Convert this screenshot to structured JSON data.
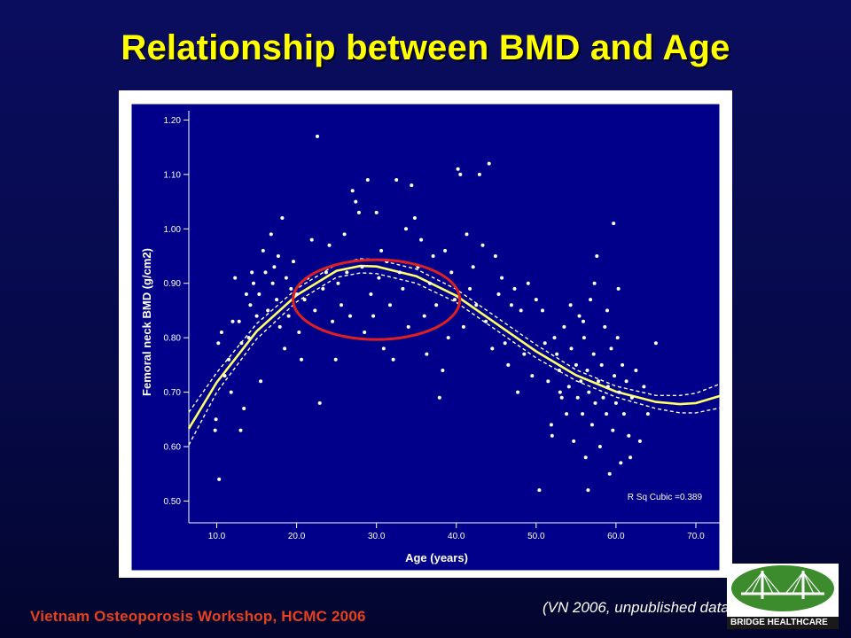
{
  "slide": {
    "title": "Relationship between BMD and Age",
    "footer": "Vietnam Osteoporosis Workshop, HCMC 2006",
    "source_note": "(VN 2006, unpublished data)",
    "logo_text": "BRIDGE HEALTHCARE",
    "colors": {
      "background": "#0a0d5e",
      "title": "#ffff00",
      "footer": "#e8401e",
      "plot_bg": "#00008b",
      "fit_line": "#ffff66",
      "highlight_ellipse": "#e02020"
    }
  },
  "chart_data": {
    "type": "scatter",
    "title": "",
    "xlabel": "Age (years)",
    "ylabel": "Femoral neck BMD (g/cm2)",
    "xlim": [
      6.5,
      73
    ],
    "ylim": [
      0.46,
      1.23
    ],
    "x_ticks": [
      "10.0",
      "20.0",
      "30.0",
      "40.0",
      "50.0",
      "60.0",
      "70.0"
    ],
    "y_ticks": [
      "0.50",
      "0.60",
      "0.70",
      "0.80",
      "0.90",
      "1.00",
      "1.10",
      "1.20"
    ],
    "annotation": "R Sq Cubic =0.389",
    "grid": false,
    "fit": {
      "type": "cubic",
      "points": [
        [
          6.5,
          0.633
        ],
        [
          10,
          0.718
        ],
        [
          15,
          0.812
        ],
        [
          20,
          0.878
        ],
        [
          25,
          0.923
        ],
        [
          28,
          0.932
        ],
        [
          30,
          0.931
        ],
        [
          35,
          0.913
        ],
        [
          40,
          0.877
        ],
        [
          45,
          0.826
        ],
        [
          50,
          0.775
        ],
        [
          55,
          0.731
        ],
        [
          60,
          0.701
        ],
        [
          65,
          0.682
        ],
        [
          68,
          0.678
        ],
        [
          70,
          0.68
        ],
        [
          73,
          0.693
        ]
      ],
      "ci_halfwidth": [
        0.03,
        0.018,
        0.014,
        0.012,
        0.012,
        0.013,
        0.013,
        0.013,
        0.012,
        0.012,
        0.012,
        0.01,
        0.01,
        0.012,
        0.016,
        0.018,
        0.022
      ]
    },
    "highlight_region": {
      "x": [
        20,
        40
      ],
      "y": [
        0.8,
        0.94
      ]
    },
    "points": [
      [
        9.8,
        0.63
      ],
      [
        9.9,
        0.65
      ],
      [
        10.3,
        0.54
      ],
      [
        10.6,
        0.81
      ],
      [
        10.2,
        0.79
      ],
      [
        11.0,
        0.73
      ],
      [
        11.5,
        0.76
      ],
      [
        12.0,
        0.83
      ],
      [
        11.8,
        0.7
      ],
      [
        12.3,
        0.91
      ],
      [
        12.8,
        0.83
      ],
      [
        13.1,
        0.79
      ],
      [
        13.4,
        0.67
      ],
      [
        13.0,
        0.63
      ],
      [
        13.7,
        0.88
      ],
      [
        14.0,
        0.8
      ],
      [
        14.4,
        0.92
      ],
      [
        14.2,
        0.86
      ],
      [
        14.6,
        0.9
      ],
      [
        15.0,
        0.84
      ],
      [
        15.3,
        0.88
      ],
      [
        15.5,
        0.72
      ],
      [
        15.8,
        0.96
      ],
      [
        16.1,
        0.92
      ],
      [
        16.4,
        0.85
      ],
      [
        16.8,
        0.99
      ],
      [
        17.0,
        0.9
      ],
      [
        17.2,
        0.93
      ],
      [
        17.5,
        0.87
      ],
      [
        17.7,
        0.95
      ],
      [
        17.9,
        0.82
      ],
      [
        18.2,
        1.02
      ],
      [
        18.5,
        0.78
      ],
      [
        18.7,
        0.91
      ],
      [
        19.0,
        0.84
      ],
      [
        19.3,
        0.89
      ],
      [
        19.6,
        0.94
      ],
      [
        20.0,
        0.88
      ],
      [
        20.3,
        0.81
      ],
      [
        20.6,
        0.76
      ],
      [
        21.0,
        0.87
      ],
      [
        21.4,
        0.91
      ],
      [
        21.9,
        0.98
      ],
      [
        22.3,
        0.85
      ],
      [
        22.6,
        1.17
      ],
      [
        22.9,
        0.68
      ],
      [
        23.3,
        0.89
      ],
      [
        23.7,
        0.92
      ],
      [
        24.1,
        0.97
      ],
      [
        24.5,
        0.83
      ],
      [
        24.9,
        0.76
      ],
      [
        25.2,
        0.9
      ],
      [
        25.6,
        0.86
      ],
      [
        26.0,
        0.99
      ],
      [
        26.3,
        0.92
      ],
      [
        26.7,
        0.84
      ],
      [
        27.0,
        1.07
      ],
      [
        27.4,
        1.05
      ],
      [
        27.8,
        1.03
      ],
      [
        28.2,
        0.93
      ],
      [
        28.5,
        0.81
      ],
      [
        28.9,
        1.09
      ],
      [
        29.3,
        0.88
      ],
      [
        29.6,
        0.84
      ],
      [
        30.0,
        1.03
      ],
      [
        30.3,
        0.91
      ],
      [
        30.6,
        0.96
      ],
      [
        30.9,
        0.78
      ],
      [
        31.3,
        0.94
      ],
      [
        31.7,
        0.86
      ],
      [
        32.1,
        0.76
      ],
      [
        32.5,
        1.09
      ],
      [
        32.9,
        0.92
      ],
      [
        33.3,
        0.89
      ],
      [
        33.7,
        1.0
      ],
      [
        34.0,
        0.82
      ],
      [
        34.4,
        1.08
      ],
      [
        34.8,
        1.02
      ],
      [
        35.2,
        0.93
      ],
      [
        35.6,
        0.98
      ],
      [
        36.0,
        0.84
      ],
      [
        36.3,
        0.77
      ],
      [
        36.7,
        0.9
      ],
      [
        37.1,
        0.95
      ],
      [
        37.5,
        0.86
      ],
      [
        37.9,
        0.69
      ],
      [
        38.3,
        0.74
      ],
      [
        38.6,
        0.96
      ],
      [
        39.0,
        0.8
      ],
      [
        39.4,
        0.92
      ],
      [
        39.8,
        0.87
      ],
      [
        40.2,
        1.11
      ],
      [
        40.5,
        1.1
      ],
      [
        40.9,
        0.82
      ],
      [
        41.3,
        0.99
      ],
      [
        41.7,
        0.89
      ],
      [
        42.1,
        0.93
      ],
      [
        42.5,
        0.86
      ],
      [
        42.9,
        1.1
      ],
      [
        43.3,
        0.97
      ],
      [
        43.7,
        0.83
      ],
      [
        44.1,
        1.12
      ],
      [
        44.5,
        0.78
      ],
      [
        44.9,
        0.95
      ],
      [
        45.3,
        0.88
      ],
      [
        45.7,
        0.91
      ],
      [
        46.1,
        0.79
      ],
      [
        46.5,
        0.75
      ],
      [
        46.9,
        0.86
      ],
      [
        47.3,
        0.89
      ],
      [
        47.7,
        0.7
      ],
      [
        48.1,
        0.85
      ],
      [
        48.5,
        0.77
      ],
      [
        49.0,
        0.9
      ],
      [
        49.5,
        0.73
      ],
      [
        50.0,
        0.87
      ],
      [
        50.4,
        0.52
      ],
      [
        50.8,
        0.85
      ],
      [
        51.1,
        0.79
      ],
      [
        51.5,
        0.72
      ],
      [
        51.9,
        0.64
      ],
      [
        52.3,
        0.8
      ],
      [
        52.6,
        0.77
      ],
      [
        52.9,
        0.74
      ],
      [
        53.2,
        0.69
      ],
      [
        53.5,
        0.82
      ],
      [
        53.8,
        0.66
      ],
      [
        54.1,
        0.71
      ],
      [
        54.4,
        0.78
      ],
      [
        54.7,
        0.61
      ],
      [
        55.0,
        0.75
      ],
      [
        55.2,
        0.69
      ],
      [
        55.4,
        0.84
      ],
      [
        55.6,
        0.72
      ],
      [
        55.8,
        0.66
      ],
      [
        56.0,
        0.8
      ],
      [
        56.2,
        0.58
      ],
      [
        56.4,
        0.74
      ],
      [
        56.6,
        0.7
      ],
      [
        56.8,
        0.87
      ],
      [
        57.0,
        0.64
      ],
      [
        57.2,
        0.77
      ],
      [
        57.4,
        0.68
      ],
      [
        57.6,
        0.95
      ],
      [
        57.8,
        0.72
      ],
      [
        58.0,
        0.6
      ],
      [
        58.2,
        0.75
      ],
      [
        58.4,
        0.69
      ],
      [
        58.6,
        0.82
      ],
      [
        58.8,
        0.66
      ],
      [
        59.0,
        0.71
      ],
      [
        59.2,
        0.55
      ],
      [
        59.4,
        0.78
      ],
      [
        59.6,
        0.63
      ],
      [
        59.8,
        0.73
      ],
      [
        60.0,
        0.68
      ],
      [
        60.2,
        0.8
      ],
      [
        60.4,
        0.7
      ],
      [
        60.6,
        0.57
      ],
      [
        60.8,
        0.75
      ],
      [
        61.0,
        0.66
      ],
      [
        61.3,
        0.72
      ],
      [
        61.6,
        0.62
      ],
      [
        62.0,
        0.69
      ],
      [
        62.5,
        0.74
      ],
      [
        63.0,
        0.61
      ],
      [
        63.5,
        0.71
      ],
      [
        64.0,
        0.66
      ],
      [
        65.0,
        0.79
      ],
      [
        54.3,
        0.86
      ],
      [
        55.9,
        0.83
      ],
      [
        57.3,
        0.9
      ],
      [
        58.9,
        0.85
      ],
      [
        59.7,
        1.01
      ],
      [
        60.3,
        0.89
      ],
      [
        53.0,
        0.7
      ],
      [
        56.5,
        0.52
      ],
      [
        61.8,
        0.58
      ],
      [
        52.0,
        0.62
      ]
    ]
  }
}
